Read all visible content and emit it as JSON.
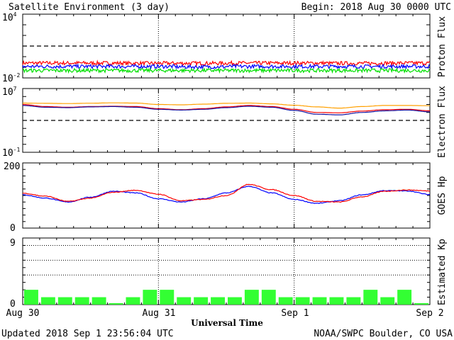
{
  "header": {
    "title": "Satellite Environment (3 day)",
    "begin_label": "Begin:  2018 Aug 30 0000 UTC"
  },
  "footer": {
    "updated": "Updated 2018 Sep  1 23:56:04 UTC",
    "credit": "NOAA/SWPC Boulder, CO USA"
  },
  "x_axis": {
    "label": "Universal Time",
    "ticks": [
      "Aug 30",
      "Aug 31",
      "Sep 1",
      "Sep 2"
    ]
  },
  "colors": {
    "red": "#ff0000",
    "blue": "#0000ff",
    "green": "#00e000",
    "orange": "#ffa000",
    "navy": "#1010a0",
    "kp_bar": "#33ff33"
  },
  "chart_data": [
    {
      "type": "line",
      "ylabel": "Proton Flux",
      "yscale": "log",
      "ylim": [
        0.01,
        10000
      ],
      "ytick_base": "10",
      "yticks_exp": [
        "4",
        "-2"
      ],
      "grid": false,
      "threshold": 10,
      "series": [
        {
          "color": "red",
          "values": [
            0.25,
            0.25,
            0.24,
            0.24,
            0.25,
            0.25,
            0.24,
            0.25
          ]
        },
        {
          "color": "blue",
          "values": [
            0.12,
            0.12,
            0.12,
            0.11,
            0.12,
            0.12,
            0.12,
            0.12
          ]
        },
        {
          "color": "green",
          "values": [
            0.05,
            0.05,
            0.05,
            0.05,
            0.05,
            0.05,
            0.05,
            0.05
          ]
        }
      ]
    },
    {
      "type": "line",
      "ylabel": "Electron Flux",
      "yscale": "log",
      "ylim": [
        0.1,
        10000000
      ],
      "ytick_base": "10",
      "yticks_exp": [
        "7",
        "-1"
      ],
      "grid": false,
      "threshold": 1000,
      "series": [
        {
          "color": "orange",
          "x": [
            0,
            4,
            8,
            12,
            16,
            20,
            24,
            28,
            32,
            36,
            40,
            44,
            48,
            52,
            56,
            60,
            64,
            68,
            72
          ],
          "values": [
            150000,
            140000,
            130000,
            145000,
            160000,
            150000,
            100000,
            90000,
            110000,
            140000,
            150000,
            120000,
            80000,
            50000,
            35000,
            55000,
            75000,
            75000,
            70000
          ]
        },
        {
          "color": "red",
          "x": [
            0,
            4,
            8,
            12,
            16,
            20,
            24,
            28,
            32,
            36,
            40,
            44,
            48,
            52,
            56,
            60,
            64,
            68,
            72
          ],
          "values": [
            100000,
            55000,
            45000,
            55000,
            60000,
            55000,
            30000,
            22000,
            30000,
            50000,
            75000,
            55000,
            25000,
            10000,
            9000,
            15000,
            22000,
            25000,
            16000
          ]
        },
        {
          "color": "navy",
          "x": [
            0,
            4,
            8,
            12,
            16,
            20,
            24,
            28,
            32,
            36,
            40,
            44,
            48,
            52,
            56,
            60,
            64,
            68,
            72
          ],
          "values": [
            75000,
            45000,
            40000,
            50000,
            55000,
            45000,
            25000,
            20000,
            25000,
            40000,
            60000,
            45000,
            18000,
            6000,
            5000,
            10000,
            16000,
            20000,
            12000
          ]
        }
      ]
    },
    {
      "type": "line",
      "ylabel": "GOES Hp",
      "ylim": [
        0,
        200
      ],
      "yticks": [
        "200",
        "0"
      ],
      "grid": false,
      "series": [
        {
          "color": "blue",
          "x": [
            0,
            4,
            8,
            12,
            16,
            20,
            24,
            28,
            32,
            36,
            40,
            44,
            48,
            52,
            56,
            60,
            64,
            68,
            72
          ],
          "values": [
            102,
            92,
            80,
            95,
            113,
            108,
            90,
            80,
            90,
            108,
            128,
            108,
            88,
            76,
            84,
            102,
            115,
            114,
            103
          ]
        },
        {
          "color": "red",
          "x": [
            0,
            4,
            8,
            12,
            16,
            20,
            24,
            28,
            32,
            36,
            40,
            44,
            48,
            52,
            56,
            60,
            64,
            68,
            72
          ],
          "values": [
            107,
            98,
            82,
            92,
            110,
            116,
            104,
            84,
            88,
            100,
            134,
            118,
            100,
            82,
            80,
            96,
            113,
            117,
            114
          ]
        }
      ]
    },
    {
      "type": "bar",
      "ylabel": "Estimated Kp",
      "ylim": [
        0,
        9
      ],
      "yticks": [
        "9",
        "0"
      ],
      "gridlines": [
        4,
        6,
        8
      ],
      "bar_hours": 3,
      "values": [
        2,
        1,
        1,
        1,
        1,
        0,
        1,
        2,
        2,
        1,
        1,
        1,
        1,
        2,
        2,
        1,
        1,
        1,
        1,
        1,
        2,
        1,
        2,
        0
      ]
    }
  ]
}
